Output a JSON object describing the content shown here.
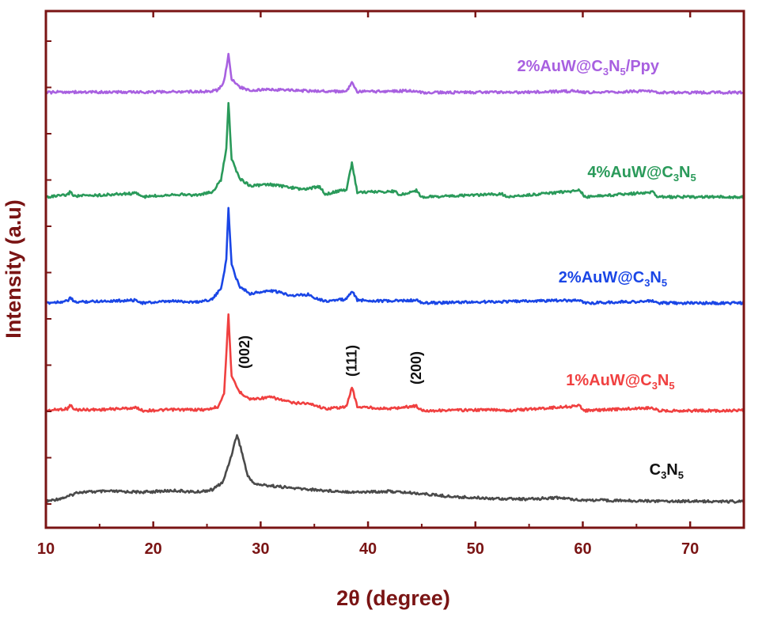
{
  "chart_data": {
    "type": "line",
    "xlabel": "2θ (degree)",
    "ylabel": "Intensity (a.u)",
    "xlim": [
      10,
      75
    ],
    "x_ticks": [
      "10",
      "20",
      "30",
      "40",
      "50",
      "60",
      "70"
    ],
    "y_tick_labels_shown": false,
    "axis_color": "#7a1414",
    "annotations": [
      {
        "text": "(002)",
        "x": 28.5
      },
      {
        "text": "(111)",
        "x": 38.5
      },
      {
        "text": "(200)",
        "x": 44.5
      }
    ],
    "series": [
      {
        "name": "C₃N₅",
        "color": "#4a4a4a",
        "points": [
          [
            10,
            0.0
          ],
          [
            12,
            0.06
          ],
          [
            13,
            0.12
          ],
          [
            16,
            0.13
          ],
          [
            19,
            0.12
          ],
          [
            22,
            0.14
          ],
          [
            24,
            0.12
          ],
          [
            25.5,
            0.15
          ],
          [
            26.5,
            0.25
          ],
          [
            27.2,
            0.55
          ],
          [
            27.8,
            0.85
          ],
          [
            28.3,
            0.6
          ],
          [
            28.8,
            0.32
          ],
          [
            29.5,
            0.22
          ],
          [
            31,
            0.2
          ],
          [
            33,
            0.17
          ],
          [
            36,
            0.14
          ],
          [
            39,
            0.12
          ],
          [
            42,
            0.13
          ],
          [
            45,
            0.1
          ],
          [
            48,
            0.06
          ],
          [
            52,
            0.04
          ],
          [
            55,
            0.03
          ],
          [
            57.5,
            0.05
          ],
          [
            60,
            0.02
          ],
          [
            65,
            0.01
          ],
          [
            70,
            0.005
          ],
          [
            75,
            0.0
          ]
        ],
        "label_x": 67.8
      },
      {
        "name": "1%AuW@C₃N₅",
        "color": "#f04040",
        "points": [
          [
            10,
            0.0
          ],
          [
            12,
            0.02
          ],
          [
            12.3,
            0.06
          ],
          [
            12.6,
            0.01
          ],
          [
            15,
            0.01
          ],
          [
            18.5,
            0.03
          ],
          [
            19,
            0.0
          ],
          [
            22,
            0.01
          ],
          [
            25,
            0.01
          ],
          [
            26,
            0.04
          ],
          [
            26.6,
            0.18
          ],
          [
            27.0,
            1.0
          ],
          [
            27.3,
            0.35
          ],
          [
            28,
            0.2
          ],
          [
            29,
            0.12
          ],
          [
            31,
            0.14
          ],
          [
            33,
            0.08
          ],
          [
            34,
            0.08
          ],
          [
            35,
            0.06
          ],
          [
            36,
            0.02
          ],
          [
            38,
            0.04
          ],
          [
            38.5,
            0.25
          ],
          [
            39,
            0.04
          ],
          [
            42,
            0.02
          ],
          [
            44.5,
            0.05
          ],
          [
            45,
            0.0
          ],
          [
            52.5,
            0.01
          ],
          [
            53,
            0.0
          ],
          [
            59.7,
            0.05
          ],
          [
            60.2,
            0.0
          ],
          [
            66.5,
            0.03
          ],
          [
            67,
            0.0
          ],
          [
            75,
            0.0
          ]
        ],
        "label_x": 63.5
      },
      {
        "name": "2%AuW@C₃N₅",
        "color": "#1a46e6",
        "points": [
          [
            10,
            0.0
          ],
          [
            12,
            0.02
          ],
          [
            12.3,
            0.06
          ],
          [
            12.6,
            0.01
          ],
          [
            15,
            0.02
          ],
          [
            18.5,
            0.03
          ],
          [
            19,
            0.0
          ],
          [
            22,
            0.02
          ],
          [
            24,
            0.01
          ],
          [
            25.5,
            0.04
          ],
          [
            26.3,
            0.15
          ],
          [
            26.8,
            0.45
          ],
          [
            27.0,
            1.0
          ],
          [
            27.3,
            0.4
          ],
          [
            28,
            0.18
          ],
          [
            29,
            0.1
          ],
          [
            31,
            0.13
          ],
          [
            33,
            0.08
          ],
          [
            34.5,
            0.09
          ],
          [
            35,
            0.06
          ],
          [
            36,
            0.02
          ],
          [
            38,
            0.04
          ],
          [
            38.5,
            0.13
          ],
          [
            39,
            0.03
          ],
          [
            42,
            0.02
          ],
          [
            44.5,
            0.03
          ],
          [
            45,
            0.0
          ],
          [
            59.7,
            0.03
          ],
          [
            60.2,
            0.0
          ],
          [
            66.5,
            0.02
          ],
          [
            67,
            0.0
          ],
          [
            75,
            0.0
          ]
        ],
        "label_x": 62.8
      },
      {
        "name": "4%AuW@C₃N₅",
        "color": "#2a9a5a",
        "points": [
          [
            10,
            0.0
          ],
          [
            12,
            0.02
          ],
          [
            12.3,
            0.06
          ],
          [
            12.6,
            0.01
          ],
          [
            15,
            0.02
          ],
          [
            18.5,
            0.04
          ],
          [
            19,
            0.0
          ],
          [
            22,
            0.03
          ],
          [
            24,
            0.02
          ],
          [
            25.5,
            0.05
          ],
          [
            26.3,
            0.18
          ],
          [
            26.8,
            0.5
          ],
          [
            27.0,
            1.0
          ],
          [
            27.3,
            0.4
          ],
          [
            28,
            0.2
          ],
          [
            29,
            0.12
          ],
          [
            31,
            0.13
          ],
          [
            34,
            0.08
          ],
          [
            35.5,
            0.11
          ],
          [
            36,
            0.03
          ],
          [
            38,
            0.08
          ],
          [
            38.5,
            0.36
          ],
          [
            39,
            0.05
          ],
          [
            42.5,
            0.06
          ],
          [
            43,
            0.02
          ],
          [
            44.5,
            0.07
          ],
          [
            45,
            0.0
          ],
          [
            52.5,
            0.03
          ],
          [
            53,
            0.0
          ],
          [
            59.7,
            0.07
          ],
          [
            60.2,
            0.0
          ],
          [
            66.5,
            0.05
          ],
          [
            67,
            0.0
          ],
          [
            75,
            0.0
          ]
        ],
        "label_x": 65.5
      },
      {
        "name": "2%AuW@C₃N₅/Ppy",
        "color": "#a860e0",
        "points": [
          [
            10,
            0.0
          ],
          [
            12,
            0.02
          ],
          [
            13,
            0.01
          ],
          [
            18,
            0.01
          ],
          [
            22,
            0.02
          ],
          [
            25,
            0.03
          ],
          [
            26,
            0.06
          ],
          [
            26.6,
            0.3
          ],
          [
            27.0,
            1.0
          ],
          [
            27.3,
            0.35
          ],
          [
            28,
            0.15
          ],
          [
            29,
            0.06
          ],
          [
            31,
            0.08
          ],
          [
            35,
            0.04
          ],
          [
            38,
            0.03
          ],
          [
            38.5,
            0.25
          ],
          [
            39,
            0.02
          ],
          [
            44.5,
            0.05
          ],
          [
            45,
            0.0
          ],
          [
            52.5,
            0.01
          ],
          [
            53,
            0.0
          ],
          [
            59.7,
            0.04
          ],
          [
            60.2,
            0.0
          ],
          [
            66.5,
            0.04
          ],
          [
            67,
            0.0
          ],
          [
            75,
            0.0
          ]
        ],
        "label_x": 60.5
      }
    ]
  }
}
